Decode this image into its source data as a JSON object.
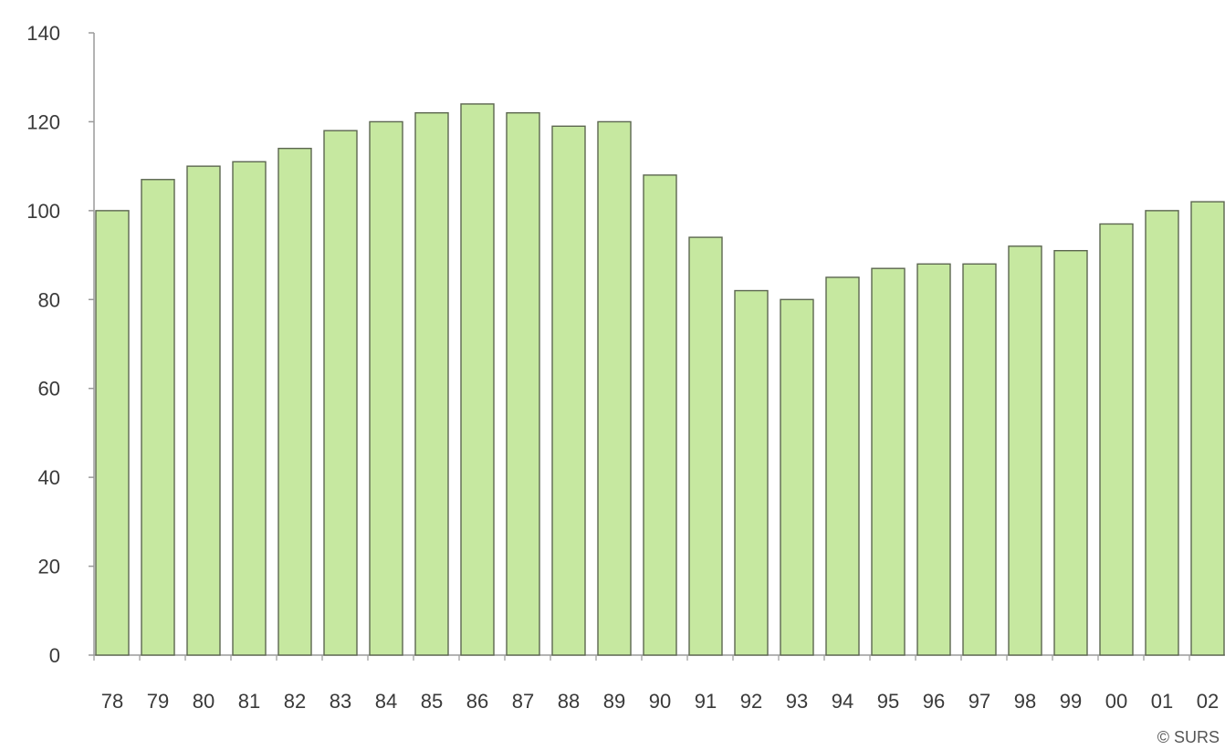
{
  "chart_data": {
    "type": "bar",
    "categories": [
      "78",
      "79",
      "80",
      "81",
      "82",
      "83",
      "84",
      "85",
      "86",
      "87",
      "88",
      "89",
      "90",
      "91",
      "92",
      "93",
      "94",
      "95",
      "96",
      "97",
      "98",
      "99",
      "00",
      "01",
      "02"
    ],
    "values": [
      100,
      107,
      110,
      111,
      114,
      118,
      120,
      122,
      124,
      122,
      119,
      120,
      108,
      94,
      82,
      80,
      85,
      87,
      88,
      88,
      92,
      91,
      97,
      100,
      102
    ],
    "title": "",
    "xlabel": "",
    "ylabel": "",
    "ylim": [
      0,
      140
    ],
    "yticks": [
      0,
      20,
      40,
      60,
      80,
      100,
      120,
      140
    ],
    "grid": false,
    "colors": {
      "bar_fill": "#c6e8a0",
      "bar_stroke": "#5c6650",
      "axis": "#9a9a9a"
    }
  },
  "footer": {
    "source": "© SURS"
  }
}
